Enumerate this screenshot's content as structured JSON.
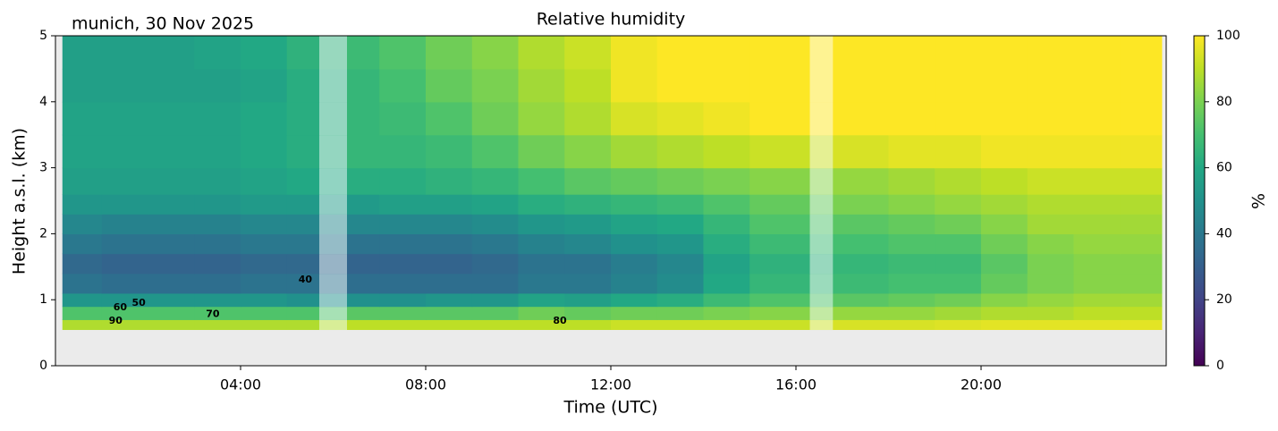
{
  "chart_data": {
    "type": "heatmap",
    "title": "Relative humidity",
    "subtitle": "munich, 30 Nov 2025",
    "xlabel": "Time (UTC)",
    "ylabel": "Height a.s.l. (km)",
    "colorbar_label": "%",
    "colormap": "viridis",
    "clim": [
      0,
      100
    ],
    "cticks": [
      0,
      20,
      40,
      60,
      80,
      100
    ],
    "xlim": [
      0,
      24
    ],
    "xticks": [
      {
        "value": 4,
        "label": "04:00"
      },
      {
        "value": 8,
        "label": "08:00"
      },
      {
        "value": 12,
        "label": "12:00"
      },
      {
        "value": 16,
        "label": "16:00"
      },
      {
        "value": 20,
        "label": "20:00"
      }
    ],
    "ylim": [
      0,
      5
    ],
    "yticks": [
      0,
      1,
      2,
      3,
      4,
      5
    ],
    "x_bins": [
      0.15,
      1,
      2,
      3,
      4,
      5,
      5.7,
      6.3,
      7,
      8,
      9,
      10,
      11,
      12,
      13,
      14,
      15,
      16.3,
      16.8,
      18,
      19,
      20,
      21,
      22,
      23,
      23.9
    ],
    "y_bins": [
      0.55,
      0.7,
      0.9,
      1.1,
      1.4,
      1.7,
      2.0,
      2.3,
      2.6,
      3.0,
      3.5,
      4.0,
      4.5,
      5.0
    ],
    "z": [
      [
        88,
        88,
        88,
        88,
        88,
        88,
        null,
        90,
        90,
        90,
        90,
        90,
        90,
        92,
        92,
        92,
        92,
        null,
        94,
        94,
        95,
        96,
        96,
        96,
        96
      ],
      [
        72,
        72,
        72,
        72,
        72,
        72,
        null,
        74,
        74,
        74,
        74,
        78,
        76,
        78,
        78,
        80,
        82,
        null,
        84,
        84,
        86,
        88,
        88,
        90,
        90
      ],
      [
        52,
        52,
        52,
        52,
        52,
        50,
        null,
        50,
        50,
        52,
        52,
        58,
        56,
        60,
        62,
        68,
        72,
        null,
        74,
        76,
        78,
        82,
        84,
        86,
        86
      ],
      [
        38,
        36,
        36,
        36,
        38,
        38,
        null,
        36,
        36,
        36,
        36,
        40,
        40,
        44,
        48,
        60,
        66,
        null,
        68,
        70,
        70,
        76,
        80,
        82,
        82
      ],
      [
        34,
        32,
        32,
        32,
        34,
        34,
        null,
        32,
        32,
        32,
        34,
        38,
        38,
        42,
        46,
        58,
        64,
        null,
        66,
        68,
        68,
        74,
        80,
        82,
        82
      ],
      [
        40,
        38,
        38,
        38,
        40,
        40,
        null,
        38,
        38,
        38,
        40,
        44,
        46,
        50,
        52,
        62,
        68,
        null,
        70,
        72,
        72,
        78,
        82,
        84,
        84
      ],
      [
        46,
        44,
        44,
        44,
        46,
        46,
        null,
        46,
        46,
        46,
        48,
        52,
        54,
        58,
        60,
        66,
        72,
        null,
        74,
        76,
        78,
        82,
        86,
        86,
        86
      ],
      [
        52,
        52,
        52,
        52,
        54,
        54,
        null,
        54,
        56,
        56,
        58,
        62,
        64,
        66,
        68,
        72,
        76,
        null,
        80,
        82,
        84,
        86,
        88,
        88,
        88
      ],
      [
        56,
        56,
        56,
        56,
        58,
        60,
        null,
        62,
        62,
        64,
        66,
        70,
        74,
        76,
        78,
        80,
        82,
        null,
        84,
        86,
        88,
        90,
        92,
        92,
        92
      ],
      [
        58,
        58,
        58,
        58,
        60,
        62,
        null,
        66,
        66,
        68,
        72,
        78,
        82,
        86,
        88,
        90,
        92,
        null,
        94,
        96,
        96,
        98,
        98,
        98,
        98
      ],
      [
        58,
        58,
        58,
        58,
        60,
        62,
        null,
        66,
        68,
        72,
        78,
        84,
        88,
        94,
        96,
        98,
        100,
        null,
        100,
        100,
        100,
        100,
        100,
        100,
        100
      ],
      [
        56,
        56,
        56,
        56,
        58,
        62,
        null,
        66,
        70,
        76,
        80,
        86,
        90,
        98,
        100,
        100,
        100,
        null,
        100,
        100,
        100,
        100,
        100,
        100,
        100
      ],
      [
        56,
        56,
        56,
        58,
        60,
        64,
        null,
        68,
        72,
        78,
        82,
        88,
        92,
        98,
        100,
        100,
        100,
        null,
        100,
        100,
        100,
        100,
        100,
        100,
        100
      ]
    ],
    "contour_labels": [
      40,
      50,
      60,
      70,
      80,
      90
    ]
  }
}
